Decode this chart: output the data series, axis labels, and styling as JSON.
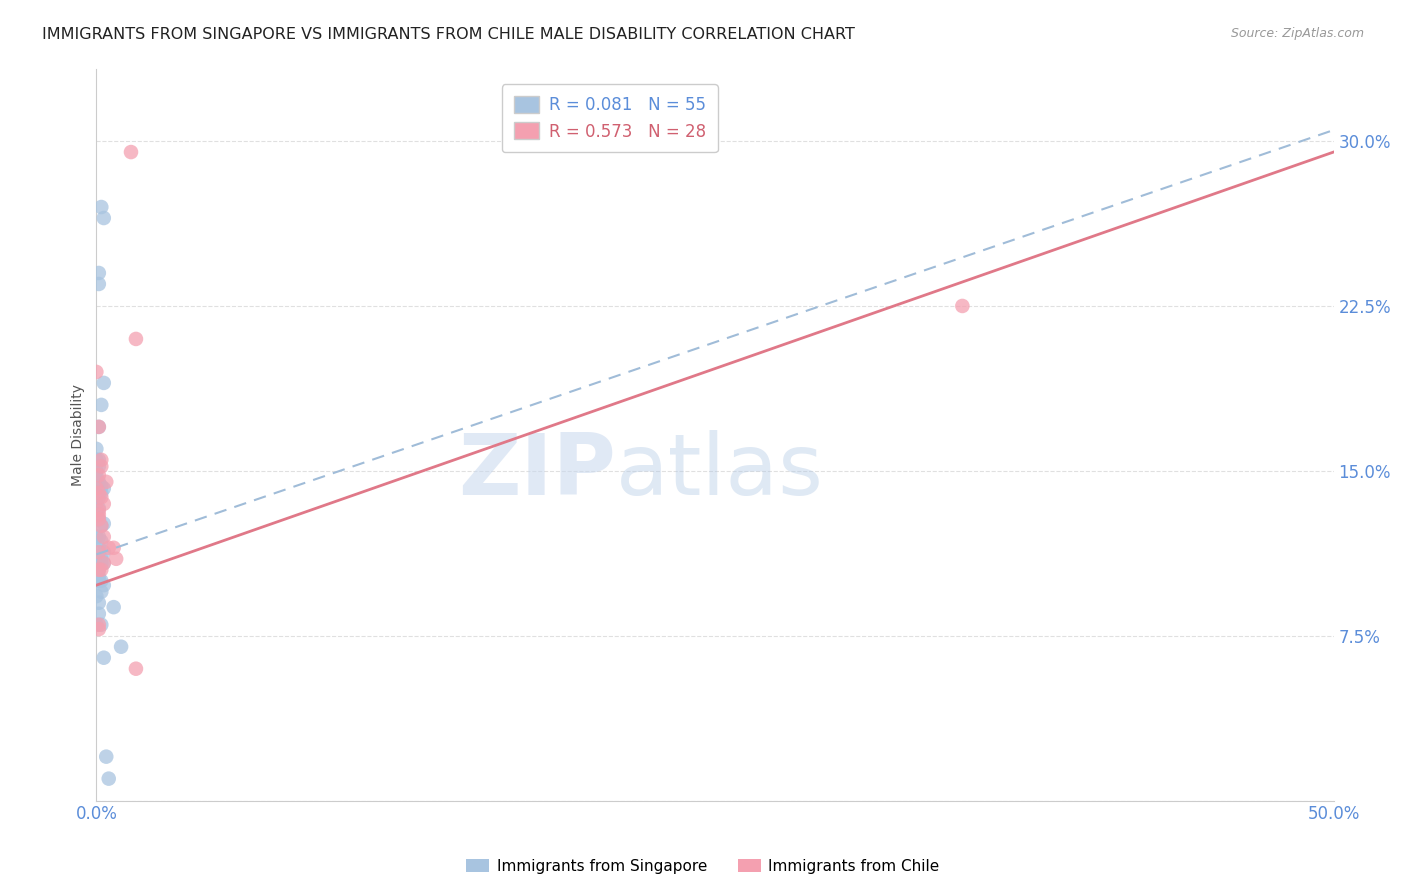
{
  "title": "IMMIGRANTS FROM SINGAPORE VS IMMIGRANTS FROM CHILE MALE DISABILITY CORRELATION CHART",
  "source": "Source: ZipAtlas.com",
  "ylabel": "Male Disability",
  "xlim": [
    0.0,
    0.5
  ],
  "ylim": [
    0.0,
    0.333
  ],
  "yticks": [
    0.0,
    0.075,
    0.15,
    0.225,
    0.3
  ],
  "ytick_labels": [
    "",
    "7.5%",
    "15.0%",
    "22.5%",
    "30.0%"
  ],
  "xticks": [
    0.0,
    0.1,
    0.2,
    0.3,
    0.4,
    0.5
  ],
  "xtick_labels": [
    "0.0%",
    "",
    "",
    "",
    "",
    "50.0%"
  ],
  "singapore_color": "#a8c4e0",
  "chile_color": "#f4a0b0",
  "singapore_R": 0.081,
  "singapore_N": 55,
  "chile_R": 0.573,
  "chile_N": 28,
  "legend_label_singapore": "Immigrants from Singapore",
  "legend_label_chile": "Immigrants from Chile",
  "sg_line_x": [
    0.0,
    0.5
  ],
  "sg_line_y": [
    0.112,
    0.305
  ],
  "ch_line_x": [
    0.0,
    0.5
  ],
  "ch_line_y": [
    0.098,
    0.295
  ],
  "singapore_x": [
    0.002,
    0.003,
    0.001,
    0.001,
    0.003,
    0.002,
    0.001,
    0.0,
    0.001,
    0.0,
    0.001,
    0.0,
    0.0,
    0.001,
    0.0,
    0.002,
    0.001,
    0.003,
    0.001,
    0.002,
    0.001,
    0.0,
    0.001,
    0.0,
    0.0,
    0.001,
    0.003,
    0.002,
    0.001,
    0.0,
    0.0,
    0.002,
    0.001,
    0.003,
    0.002,
    0.001,
    0.002,
    0.003,
    0.001,
    0.0,
    0.001,
    0.002,
    0.001,
    0.003,
    0.002,
    0.0,
    0.001,
    0.007,
    0.001,
    0.002,
    0.0,
    0.01,
    0.003,
    0.004,
    0.005
  ],
  "singapore_y": [
    0.27,
    0.265,
    0.24,
    0.235,
    0.19,
    0.18,
    0.17,
    0.16,
    0.155,
    0.155,
    0.152,
    0.15,
    0.148,
    0.145,
    0.143,
    0.143,
    0.143,
    0.142,
    0.141,
    0.14,
    0.138,
    0.135,
    0.133,
    0.132,
    0.13,
    0.128,
    0.126,
    0.125,
    0.12,
    0.12,
    0.12,
    0.118,
    0.115,
    0.113,
    0.11,
    0.11,
    0.108,
    0.108,
    0.105,
    0.105,
    0.102,
    0.1,
    0.1,
    0.098,
    0.095,
    0.093,
    0.09,
    0.088,
    0.085,
    0.08,
    0.08,
    0.07,
    0.065,
    0.02,
    0.01
  ],
  "chile_x": [
    0.014,
    0.016,
    0.0,
    0.001,
    0.002,
    0.002,
    0.001,
    0.004,
    0.0,
    0.001,
    0.002,
    0.003,
    0.001,
    0.001,
    0.001,
    0.002,
    0.003,
    0.005,
    0.001,
    0.007,
    0.008,
    0.003,
    0.002,
    0.35,
    0.001,
    0.001,
    0.016,
    0.001
  ],
  "chile_y": [
    0.295,
    0.21,
    0.195,
    0.17,
    0.155,
    0.152,
    0.148,
    0.145,
    0.142,
    0.14,
    0.138,
    0.135,
    0.132,
    0.13,
    0.128,
    0.125,
    0.12,
    0.115,
    0.113,
    0.115,
    0.11,
    0.108,
    0.105,
    0.225,
    0.08,
    0.078,
    0.06,
    0.105
  ],
  "watermark_zip": "ZIP",
  "watermark_atlas": "atlas",
  "background_color": "#ffffff",
  "grid_color": "#e0e0e0",
  "tick_label_color": "#5b8dd9",
  "title_color": "#222222",
  "title_fontsize": 11.5,
  "axis_label_fontsize": 10
}
